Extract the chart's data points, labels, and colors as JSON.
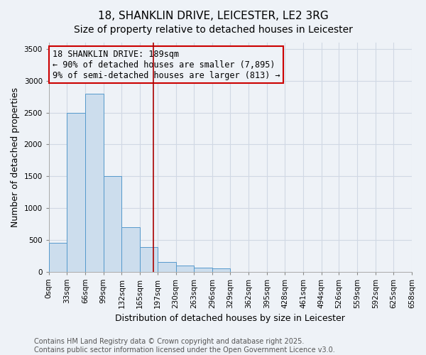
{
  "title_line1": "18, SHANKLIN DRIVE, LEICESTER, LE2 3RG",
  "title_line2": "Size of property relative to detached houses in Leicester",
  "xlabel": "Distribution of detached houses by size in Leicester",
  "ylabel": "Number of detached properties",
  "bins": [
    "0sqm",
    "33sqm",
    "66sqm",
    "99sqm",
    "132sqm",
    "165sqm",
    "197sqm",
    "230sqm",
    "263sqm",
    "296sqm",
    "329sqm",
    "362sqm",
    "395sqm",
    "428sqm",
    "461sqm",
    "494sqm",
    "526sqm",
    "559sqm",
    "592sqm",
    "625sqm",
    "658sqm"
  ],
  "bin_edges": [
    0,
    33,
    66,
    99,
    132,
    165,
    197,
    230,
    263,
    296,
    329,
    362,
    395,
    428,
    461,
    494,
    526,
    559,
    592,
    625,
    658
  ],
  "bar_heights": [
    450,
    2500,
    2800,
    1500,
    700,
    380,
    150,
    100,
    60,
    50,
    0,
    0,
    0,
    0,
    0,
    0,
    0,
    0,
    0,
    0
  ],
  "bar_color": "#ccdded",
  "bar_edgecolor": "#5599cc",
  "property_size": 189,
  "vline_color": "#aa0000",
  "ylim": [
    0,
    3600
  ],
  "yticks": [
    0,
    500,
    1000,
    1500,
    2000,
    2500,
    3000,
    3500
  ],
  "annotation_title": "18 SHANKLIN DRIVE: 189sqm",
  "annotation_line1": "← 90% of detached houses are smaller (7,895)",
  "annotation_line2": "9% of semi-detached houses are larger (813) →",
  "annotation_box_color": "#cc0000",
  "footer_line1": "Contains HM Land Registry data © Crown copyright and database right 2025.",
  "footer_line2": "Contains public sector information licensed under the Open Government Licence v3.0.",
  "bg_color": "#eef2f7",
  "grid_color": "#d0d8e4",
  "title_fontsize": 11,
  "axis_label_fontsize": 9,
  "tick_fontsize": 7.5,
  "annotation_fontsize": 8.5,
  "footer_fontsize": 7
}
